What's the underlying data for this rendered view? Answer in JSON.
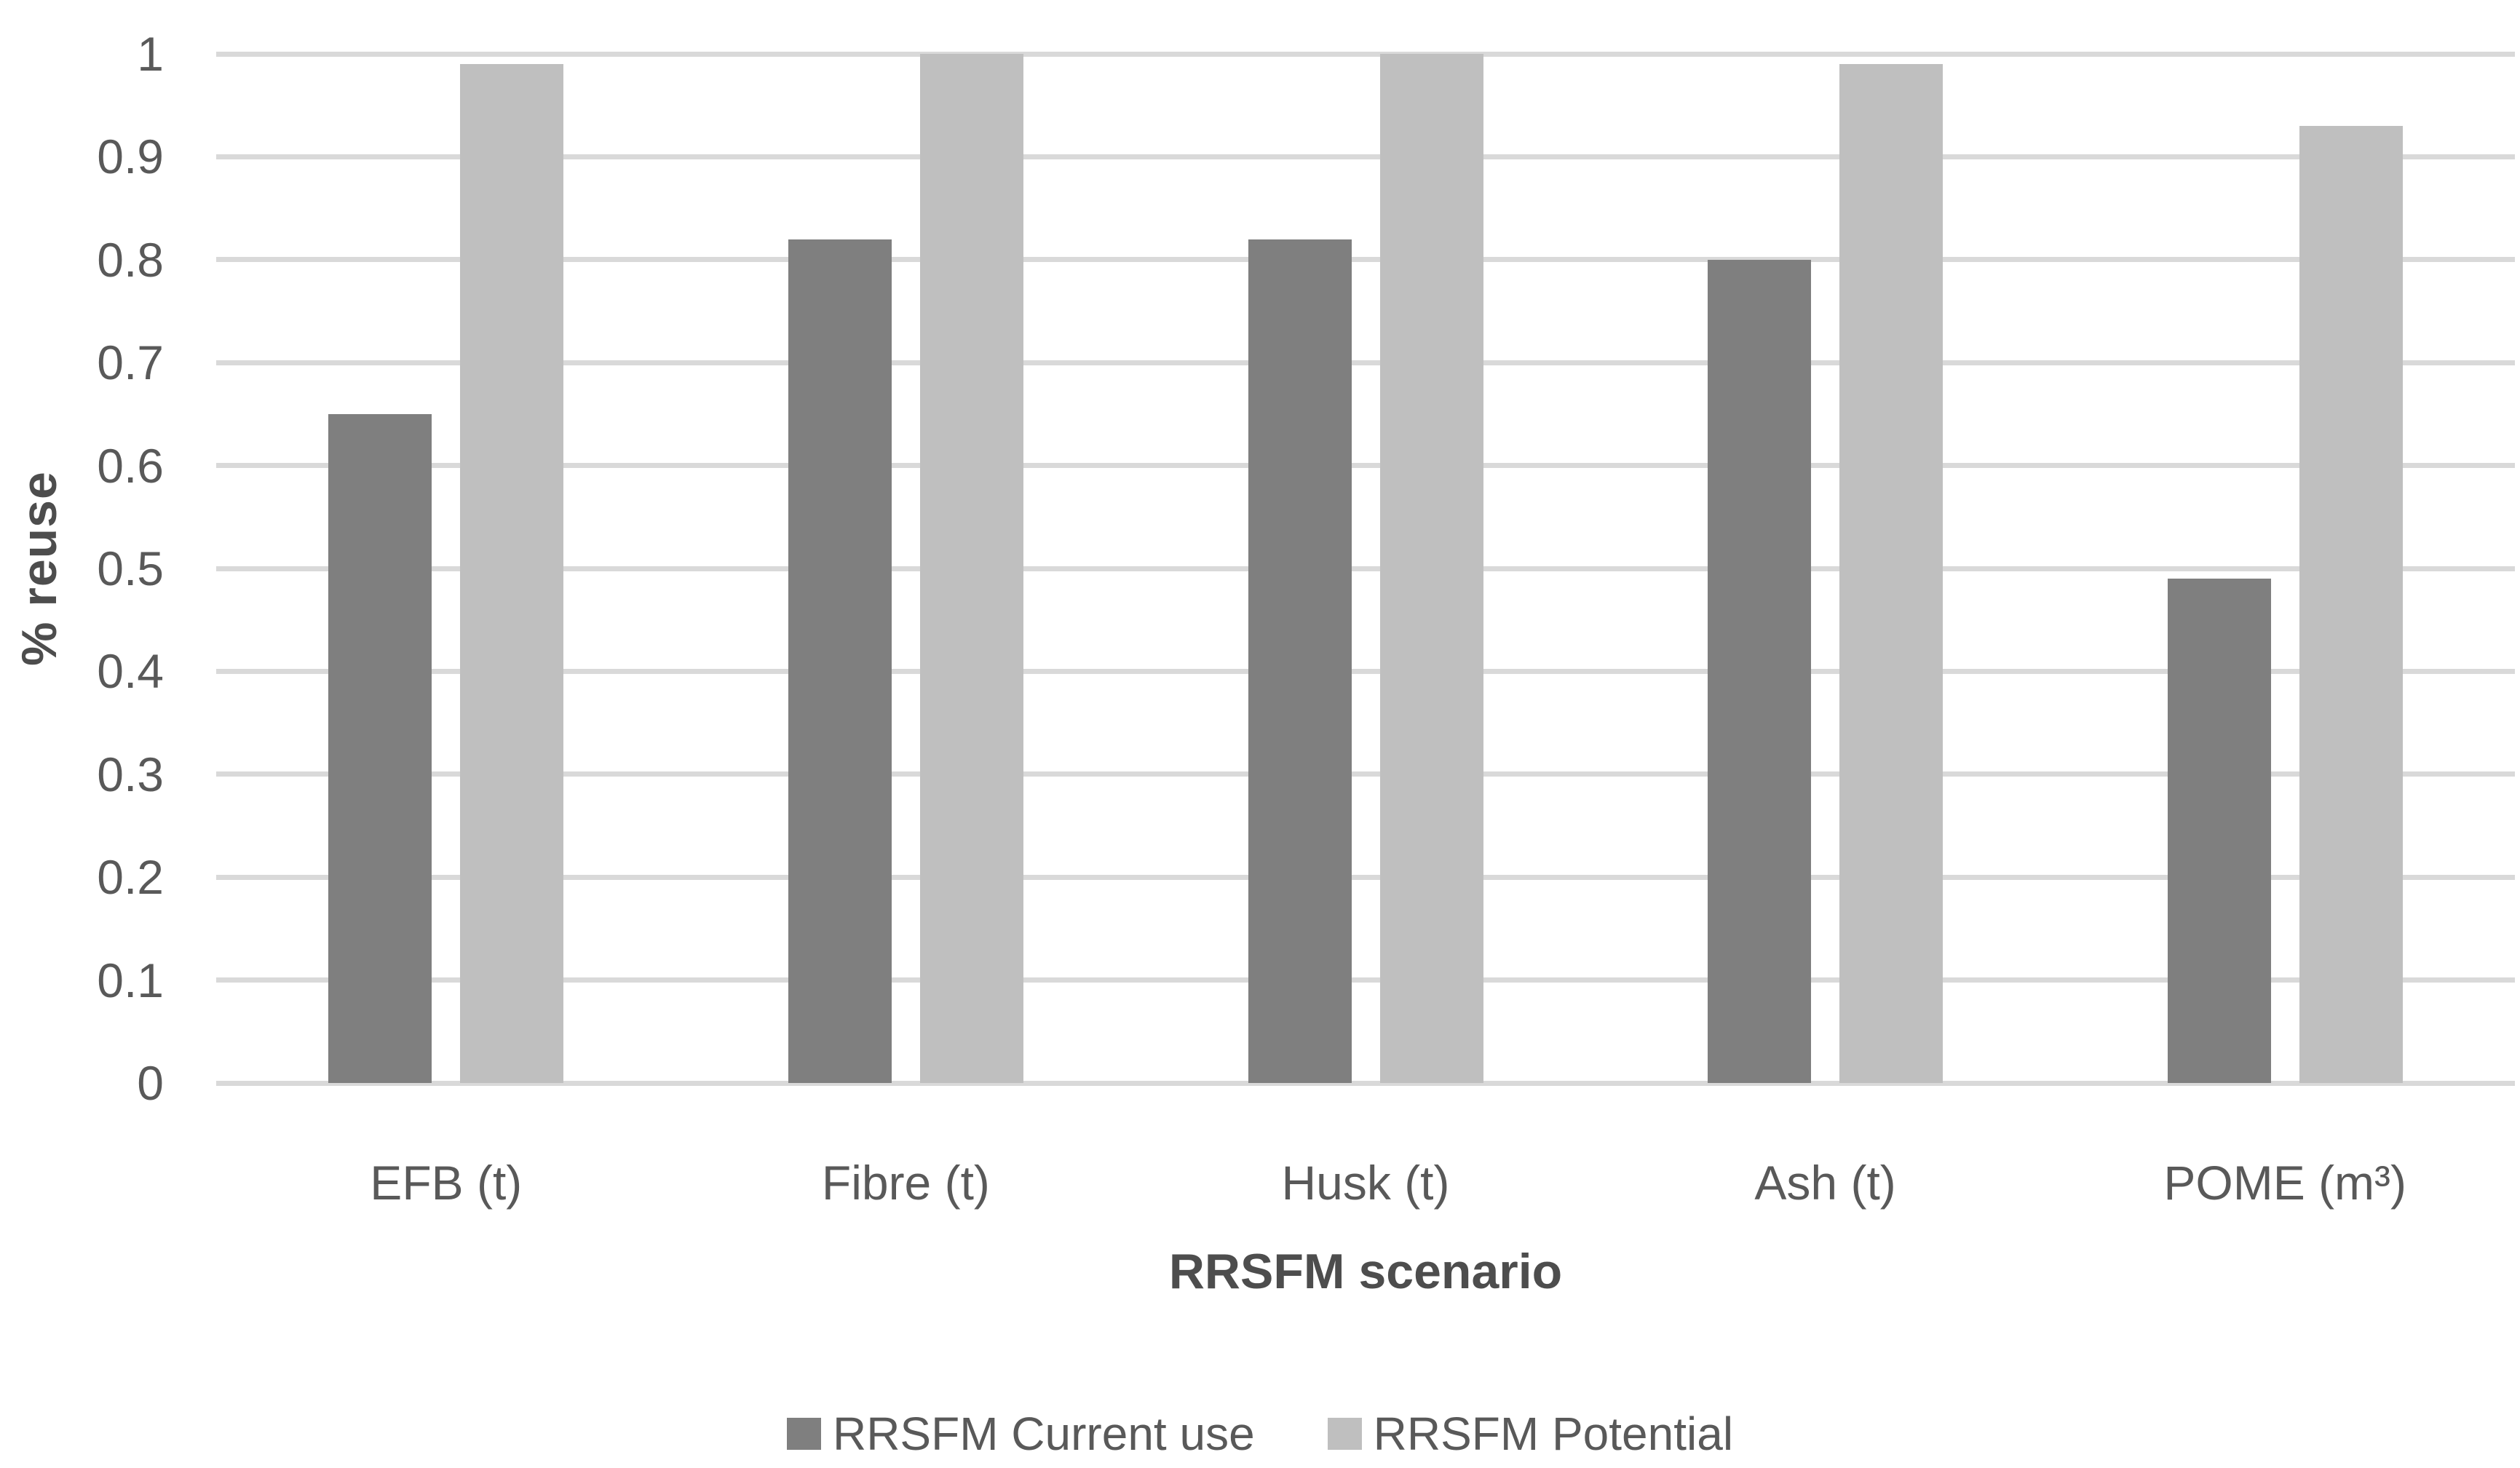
{
  "chart_data": {
    "type": "bar",
    "title": "",
    "xlabel": "RRSFM scenario",
    "ylabel": "% reuse",
    "categories": [
      "EFB (t)",
      "Fibre (t)",
      "Husk (t)",
      "Ash (t)",
      "POME (m³)"
    ],
    "series": [
      {
        "name": "RRSFM Current use",
        "color": "#7f7f7f",
        "values": [
          0.65,
          0.82,
          0.82,
          0.8,
          0.49
        ]
      },
      {
        "name": "RRSFM Potential",
        "color": "#bfbfbf",
        "values": [
          0.99,
          1.0,
          1.0,
          0.99,
          0.93
        ]
      }
    ],
    "ylim": [
      0,
      1
    ],
    "ytick_interval": 0.1,
    "ytick_labels": [
      "0",
      "0.1",
      "0.2",
      "0.3",
      "0.4",
      "0.5",
      "0.6",
      "0.7",
      "0.8",
      "0.9",
      "1"
    ],
    "grid": true,
    "gridline_color": "#d9d9d9",
    "background_color": "#ffffff",
    "text_color": "#595959",
    "legend_position": "bottom"
  }
}
